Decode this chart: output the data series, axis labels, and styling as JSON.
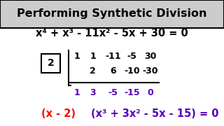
{
  "title": "Performing Synthetic Division",
  "title_color": "#000000",
  "title_bg": "#cccccc",
  "bg_color": "#ffffff",
  "equation": "x⁴ + x³ - 11x² - 5x + 30 = 0",
  "divisor": "2",
  "row1": [
    "1",
    "1",
    "-11",
    "-5",
    "30"
  ],
  "row2": [
    "2",
    "6",
    "-10",
    "-30"
  ],
  "row3": [
    "1",
    "3",
    "-5",
    "-15",
    "0"
  ],
  "result_red": "(x - 2)",
  "result_purple": "(x³ + 3x² - 5x - 15) = 0",
  "row3_color": "#5500bb",
  "result_red_color": "#ff0000",
  "result_purple_color": "#5500bb",
  "black": "#000000",
  "title_fontsize": 11.5,
  "eq_fontsize": 10.5,
  "syn_fontsize": 9.0,
  "result_fontsize": 10.5
}
